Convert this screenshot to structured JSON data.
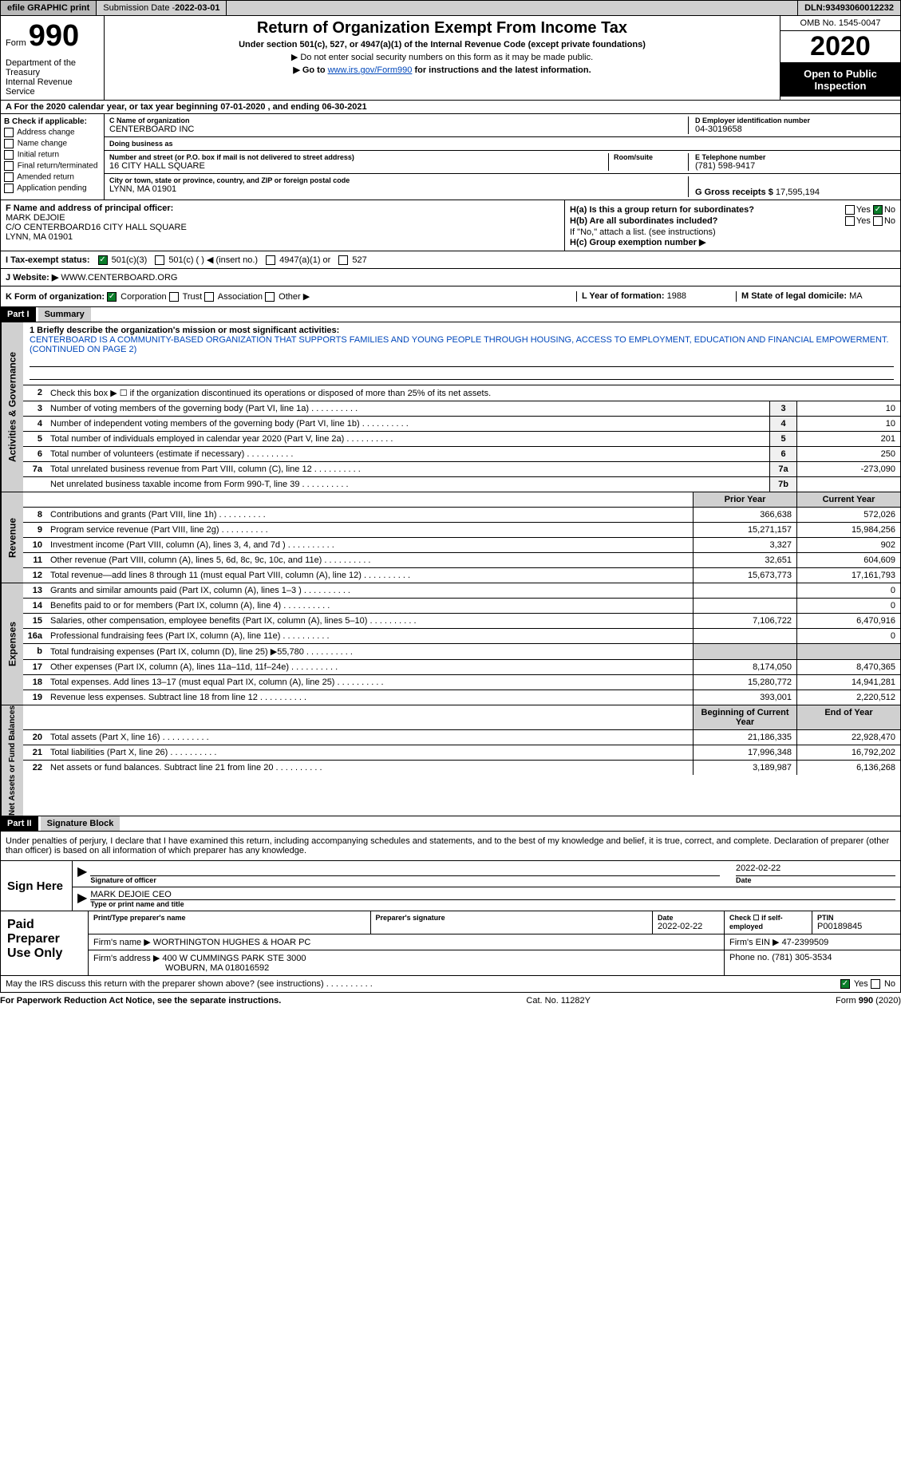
{
  "topbar": {
    "efile": "efile GRAPHIC print",
    "submission_label": "Submission Date - ",
    "submission_date": "2022-03-01",
    "dln_label": "DLN: ",
    "dln": "93493060012232"
  },
  "header": {
    "form_prefix": "Form",
    "form_number": "990",
    "dept": "Department of the Treasury\nInternal Revenue Service",
    "title": "Return of Organization Exempt From Income Tax",
    "subtitle": "Under section 501(c), 527, or 4947(a)(1) of the Internal Revenue Code (except private foundations)",
    "note1": "▶ Do not enter social security numbers on this form as it may be made public.",
    "note2_prefix": "▶ Go to ",
    "note2_link": "www.irs.gov/Form990",
    "note2_suffix": " for instructions and the latest information.",
    "omb": "OMB No. 1545-0047",
    "year": "2020",
    "inspection": "Open to Public Inspection"
  },
  "period": "A For the 2020 calendar year, or tax year beginning 07-01-2020  , and ending 06-30-2021",
  "section_b": {
    "label": "B Check if applicable:",
    "options": [
      "Address change",
      "Name change",
      "Initial return",
      "Final return/terminated",
      "Amended return",
      "Application pending"
    ]
  },
  "section_c": {
    "name_label": "C Name of organization",
    "name": "CENTERBOARD INC",
    "dba_label": "Doing business as",
    "dba": "",
    "addr_label": "Number and street (or P.O. box if mail is not delivered to street address)",
    "room_label": "Room/suite",
    "addr": "16 CITY HALL SQUARE",
    "city_label": "City or town, state or province, country, and ZIP or foreign postal code",
    "city": "LYNN, MA  01901"
  },
  "section_d": {
    "label": "D Employer identification number",
    "value": "04-3019658"
  },
  "section_e": {
    "label": "E Telephone number",
    "value": "(781) 598-9417"
  },
  "section_g": {
    "label": "G Gross receipts $",
    "value": "17,595,194"
  },
  "section_f": {
    "label": "F Name and address of principal officer:",
    "name": "MARK DEJOIE",
    "addr1": "C/O CENTERBOARD16 CITY HALL SQUARE",
    "addr2": "LYNN, MA  01901"
  },
  "section_h": {
    "ha": "H(a)  Is this a group return for subordinates?",
    "hb": "H(b)  Are all subordinates included?",
    "hb_note": "If \"No,\" attach a list. (see instructions)",
    "hc": "H(c)  Group exemption number ▶",
    "yes": "Yes",
    "no": "No"
  },
  "section_i": {
    "label": "I  Tax-exempt status:",
    "opt1": "501(c)(3)",
    "opt2": "501(c) (  ) ◀ (insert no.)",
    "opt3": "4947(a)(1) or",
    "opt4": "527"
  },
  "section_j": {
    "label": "J  Website: ▶",
    "value": "WWW.CENTERBOARD.ORG"
  },
  "section_k": {
    "label": "K Form of organization:",
    "opts": [
      "Corporation",
      "Trust",
      "Association",
      "Other ▶"
    ]
  },
  "section_l": {
    "label": "L Year of formation:",
    "value": "1988"
  },
  "section_m": {
    "label": "M State of legal domicile:",
    "value": "MA"
  },
  "part1": {
    "header": "Part I",
    "title": "Summary",
    "line1_label": "1  Briefly describe the organization's mission or most significant activities:",
    "mission": "CENTERBOARD IS A COMMUNITY-BASED ORGANIZATION THAT SUPPORTS FAMILIES AND YOUNG PEOPLE THROUGH HOUSING, ACCESS TO EMPLOYMENT, EDUCATION AND FINANCIAL EMPOWERMENT. (CONTINUED ON PAGE 2)",
    "line2": "Check this box ▶ ☐  if the organization discontinued its operations or disposed of more than 25% of its net assets.",
    "governance_label": "Activities & Governance",
    "revenue_label": "Revenue",
    "expenses_label": "Expenses",
    "netassets_label": "Net Assets or Fund Balances",
    "prior_hdr": "Prior Year",
    "current_hdr": "Current Year",
    "begin_hdr": "Beginning of Current Year",
    "end_hdr": "End of Year",
    "rows_governance": [
      {
        "num": "3",
        "desc": "Number of voting members of the governing body (Part VI, line 1a)",
        "cell": "3",
        "val": "10"
      },
      {
        "num": "4",
        "desc": "Number of independent voting members of the governing body (Part VI, line 1b)",
        "cell": "4",
        "val": "10"
      },
      {
        "num": "5",
        "desc": "Total number of individuals employed in calendar year 2020 (Part V, line 2a)",
        "cell": "5",
        "val": "201"
      },
      {
        "num": "6",
        "desc": "Total number of volunteers (estimate if necessary)",
        "cell": "6",
        "val": "250"
      },
      {
        "num": "7a",
        "desc": "Total unrelated business revenue from Part VIII, column (C), line 12",
        "cell": "7a",
        "val": "-273,090"
      },
      {
        "num": "",
        "desc": "Net unrelated business taxable income from Form 990-T, line 39",
        "cell": "7b",
        "val": ""
      }
    ],
    "rows_revenue": [
      {
        "num": "8",
        "desc": "Contributions and grants (Part VIII, line 1h)",
        "prior": "366,638",
        "curr": "572,026"
      },
      {
        "num": "9",
        "desc": "Program service revenue (Part VIII, line 2g)",
        "prior": "15,271,157",
        "curr": "15,984,256"
      },
      {
        "num": "10",
        "desc": "Investment income (Part VIII, column (A), lines 3, 4, and 7d )",
        "prior": "3,327",
        "curr": "902"
      },
      {
        "num": "11",
        "desc": "Other revenue (Part VIII, column (A), lines 5, 6d, 8c, 9c, 10c, and 11e)",
        "prior": "32,651",
        "curr": "604,609"
      },
      {
        "num": "12",
        "desc": "Total revenue—add lines 8 through 11 (must equal Part VIII, column (A), line 12)",
        "prior": "15,673,773",
        "curr": "17,161,793"
      }
    ],
    "rows_expenses": [
      {
        "num": "13",
        "desc": "Grants and similar amounts paid (Part IX, column (A), lines 1–3 )",
        "prior": "",
        "curr": "0"
      },
      {
        "num": "14",
        "desc": "Benefits paid to or for members (Part IX, column (A), line 4)",
        "prior": "",
        "curr": "0"
      },
      {
        "num": "15",
        "desc": "Salaries, other compensation, employee benefits (Part IX, column (A), lines 5–10)",
        "prior": "7,106,722",
        "curr": "6,470,916"
      },
      {
        "num": "16a",
        "desc": "Professional fundraising fees (Part IX, column (A), line 11e)",
        "prior": "",
        "curr": "0"
      },
      {
        "num": "b",
        "desc": "Total fundraising expenses (Part IX, column (D), line 25) ▶55,780",
        "prior": "gray",
        "curr": "gray"
      },
      {
        "num": "17",
        "desc": "Other expenses (Part IX, column (A), lines 11a–11d, 11f–24e)",
        "prior": "8,174,050",
        "curr": "8,470,365"
      },
      {
        "num": "18",
        "desc": "Total expenses. Add lines 13–17 (must equal Part IX, column (A), line 25)",
        "prior": "15,280,772",
        "curr": "14,941,281"
      },
      {
        "num": "19",
        "desc": "Revenue less expenses. Subtract line 18 from line 12",
        "prior": "393,001",
        "curr": "2,220,512"
      }
    ],
    "rows_netassets": [
      {
        "num": "20",
        "desc": "Total assets (Part X, line 16)",
        "prior": "21,186,335",
        "curr": "22,928,470"
      },
      {
        "num": "21",
        "desc": "Total liabilities (Part X, line 26)",
        "prior": "17,996,348",
        "curr": "16,792,202"
      },
      {
        "num": "22",
        "desc": "Net assets or fund balances. Subtract line 21 from line 20",
        "prior": "3,189,987",
        "curr": "6,136,268"
      }
    ]
  },
  "part2": {
    "header": "Part II",
    "title": "Signature Block",
    "declaration": "Under penalties of perjury, I declare that I have examined this return, including accompanying schedules and statements, and to the best of my knowledge and belief, it is true, correct, and complete. Declaration of preparer (other than officer) is based on all information of which preparer has any knowledge."
  },
  "sign": {
    "label": "Sign Here",
    "sig_label": "Signature of officer",
    "date_label": "Date",
    "date": "2022-02-22",
    "name": "MARK DEJOIE CEO",
    "name_label": "Type or print name and title"
  },
  "preparer": {
    "label": "Paid Preparer Use Only",
    "cols": [
      "Print/Type preparer's name",
      "Preparer's signature",
      "Date",
      "Check ☐ if self-employed",
      "PTIN"
    ],
    "date": "2022-02-22",
    "ptin": "P00189845",
    "firm_name_label": "Firm's name   ▶",
    "firm_name": "WORTHINGTON HUGHES & HOAR PC",
    "firm_ein_label": "Firm's EIN ▶",
    "firm_ein": "47-2399509",
    "firm_addr_label": "Firm's address ▶",
    "firm_addr": "400 W CUMMINGS PARK STE 3000",
    "firm_city": "WOBURN, MA  018016592",
    "phone_label": "Phone no.",
    "phone": "(781) 305-3534"
  },
  "discuss": {
    "text": "May the IRS discuss this return with the preparer shown above? (see instructions)",
    "yes": "Yes",
    "no": "No"
  },
  "footer": {
    "left": "For Paperwork Reduction Act Notice, see the separate instructions.",
    "mid": "Cat. No. 11282Y",
    "right": "Form 990 (2020)"
  }
}
